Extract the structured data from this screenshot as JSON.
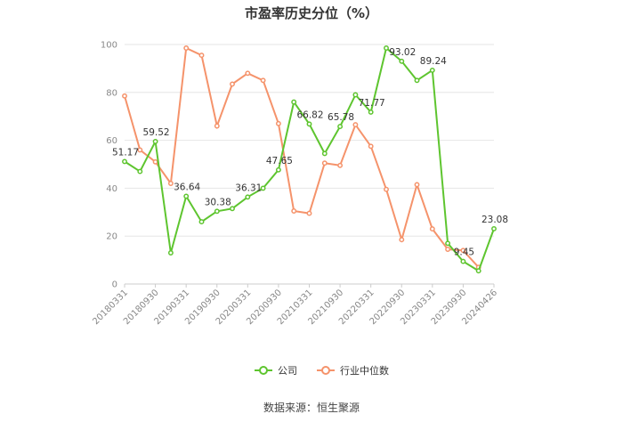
{
  "chart_data": {
    "type": "line",
    "title": "市盈率历史分位（%）",
    "ylim": [
      0,
      100
    ],
    "y_ticks": [
      0,
      20,
      40,
      60,
      80,
      100
    ],
    "grid": true,
    "legend_position": "bottom",
    "x_tick_labels": [
      "20180331",
      "20180930",
      "20190331",
      "20190930",
      "20200331",
      "20200930",
      "20210331",
      "20210930",
      "20220331",
      "20220930",
      "20230331",
      "20230930",
      "20240426"
    ],
    "x": [
      "20180331",
      "20180630",
      "20180930",
      "20181231",
      "20190331",
      "20190630",
      "20190930",
      "20191231",
      "20200331",
      "20200630",
      "20200930",
      "20201231",
      "20210331",
      "20210630",
      "20210930",
      "20211231",
      "20220331",
      "20220630",
      "20220930",
      "20221231",
      "20230331",
      "20230630",
      "20230930",
      "20231231",
      "20240426"
    ],
    "series": [
      {
        "name": "公司",
        "color": "#5ec52f",
        "values": [
          51.17,
          47,
          59.52,
          13,
          36.64,
          26,
          30.38,
          31.5,
          36.31,
          40,
          47.65,
          76,
          66.82,
          54.5,
          65.78,
          79,
          71.77,
          98.5,
          93.02,
          85,
          89.24,
          17,
          9.45,
          5.5,
          23.08
        ],
        "labels": [
          "51.17",
          "",
          "59.52",
          "",
          "36.64",
          "",
          "30.38",
          "",
          "36.31",
          "",
          "47.65",
          "",
          "66.82",
          "",
          "65.78",
          "",
          "71.77",
          "",
          "93.02",
          "",
          "89.24",
          "",
          "9.45",
          "",
          "23.08"
        ]
      },
      {
        "name": "行业中位数",
        "color": "#f5936b",
        "values": [
          78.5,
          56,
          51,
          42,
          98.5,
          95.5,
          66,
          83.5,
          88,
          85,
          67,
          30.5,
          29.5,
          50.5,
          49.5,
          66.5,
          57.5,
          39.5,
          18.5,
          41.5,
          23,
          14.5,
          14,
          7,
          null
        ],
        "labels": []
      }
    ]
  },
  "source_text": "数据来源：恒生聚源"
}
